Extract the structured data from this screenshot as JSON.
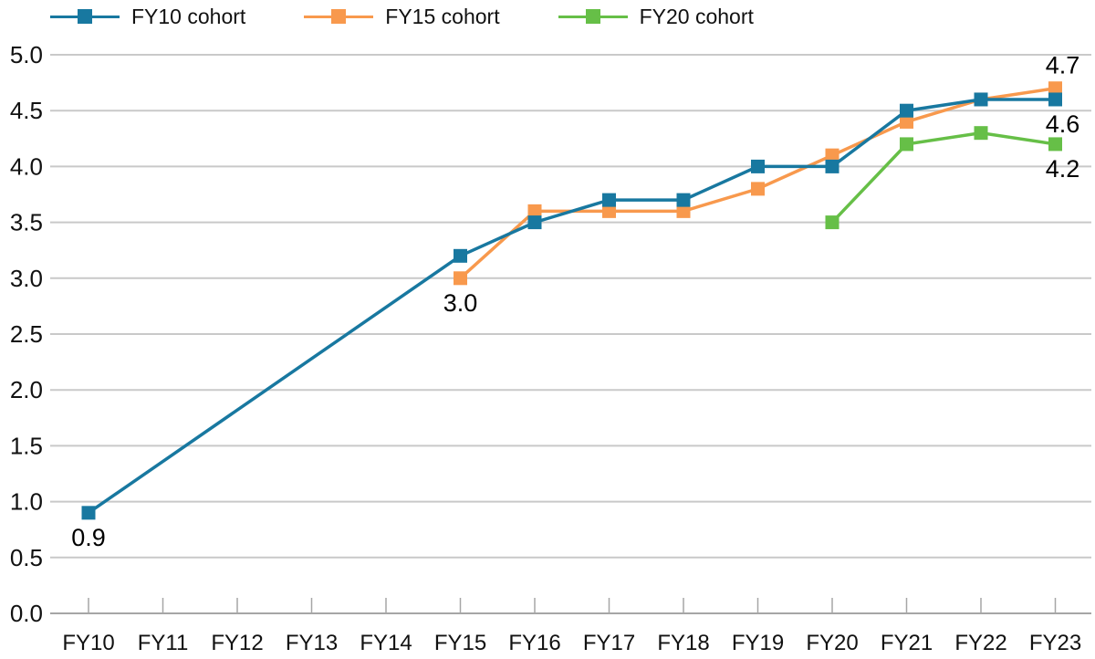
{
  "chart_data": {
    "type": "line",
    "title": "",
    "xlabel": "",
    "ylabel": "",
    "categories": [
      "FY10",
      "FY11",
      "FY12",
      "FY13",
      "FY14",
      "FY15",
      "FY16",
      "FY17",
      "FY18",
      "FY19",
      "FY20",
      "FY21",
      "FY22",
      "FY23"
    ],
    "series": [
      {
        "name": "FY10 cohort",
        "color": "#1878A0",
        "values": [
          0.9,
          null,
          null,
          null,
          null,
          3.2,
          3.5,
          3.7,
          3.7,
          4.0,
          4.0,
          4.5,
          4.6,
          4.6
        ]
      },
      {
        "name": "FY15 cohort",
        "color": "#F8994D",
        "values": [
          null,
          null,
          null,
          null,
          null,
          3.0,
          3.6,
          3.6,
          3.6,
          3.8,
          4.1,
          4.4,
          4.6,
          4.7
        ]
      },
      {
        "name": "FY20 cohort",
        "color": "#66BF47",
        "values": [
          null,
          null,
          null,
          null,
          null,
          null,
          null,
          null,
          null,
          null,
          3.5,
          4.2,
          4.3,
          4.2
        ]
      }
    ],
    "point_labels": [
      {
        "series": "FY10 cohort",
        "category": "FY10",
        "text": "0.9",
        "position": "below"
      },
      {
        "series": "FY15 cohort",
        "category": "FY15",
        "text": "3.0",
        "position": "below"
      },
      {
        "series": "FY15 cohort",
        "category": "FY23",
        "text": "4.7",
        "position": "above"
      },
      {
        "series": "FY10 cohort",
        "category": "FY23",
        "text": "4.6",
        "position": "below"
      },
      {
        "series": "FY20 cohort",
        "category": "FY23",
        "text": "4.2",
        "position": "below"
      }
    ],
    "ylim": [
      0,
      5
    ],
    "ytick_step": 0.5,
    "ytick_labels": [
      "0.0",
      "0.5",
      "1.0",
      "1.5",
      "2.0",
      "2.5",
      "3.0",
      "3.5",
      "4.0",
      "4.5",
      "5.0"
    ],
    "grid": "horizontal",
    "marker": "square",
    "legend_position": "top-left"
  },
  "colors": {
    "gridline": "#C9C9C9",
    "axis": "#A6A6A6",
    "tick": "#A6A6A6",
    "text": "#111111",
    "data_label": "#000000"
  }
}
